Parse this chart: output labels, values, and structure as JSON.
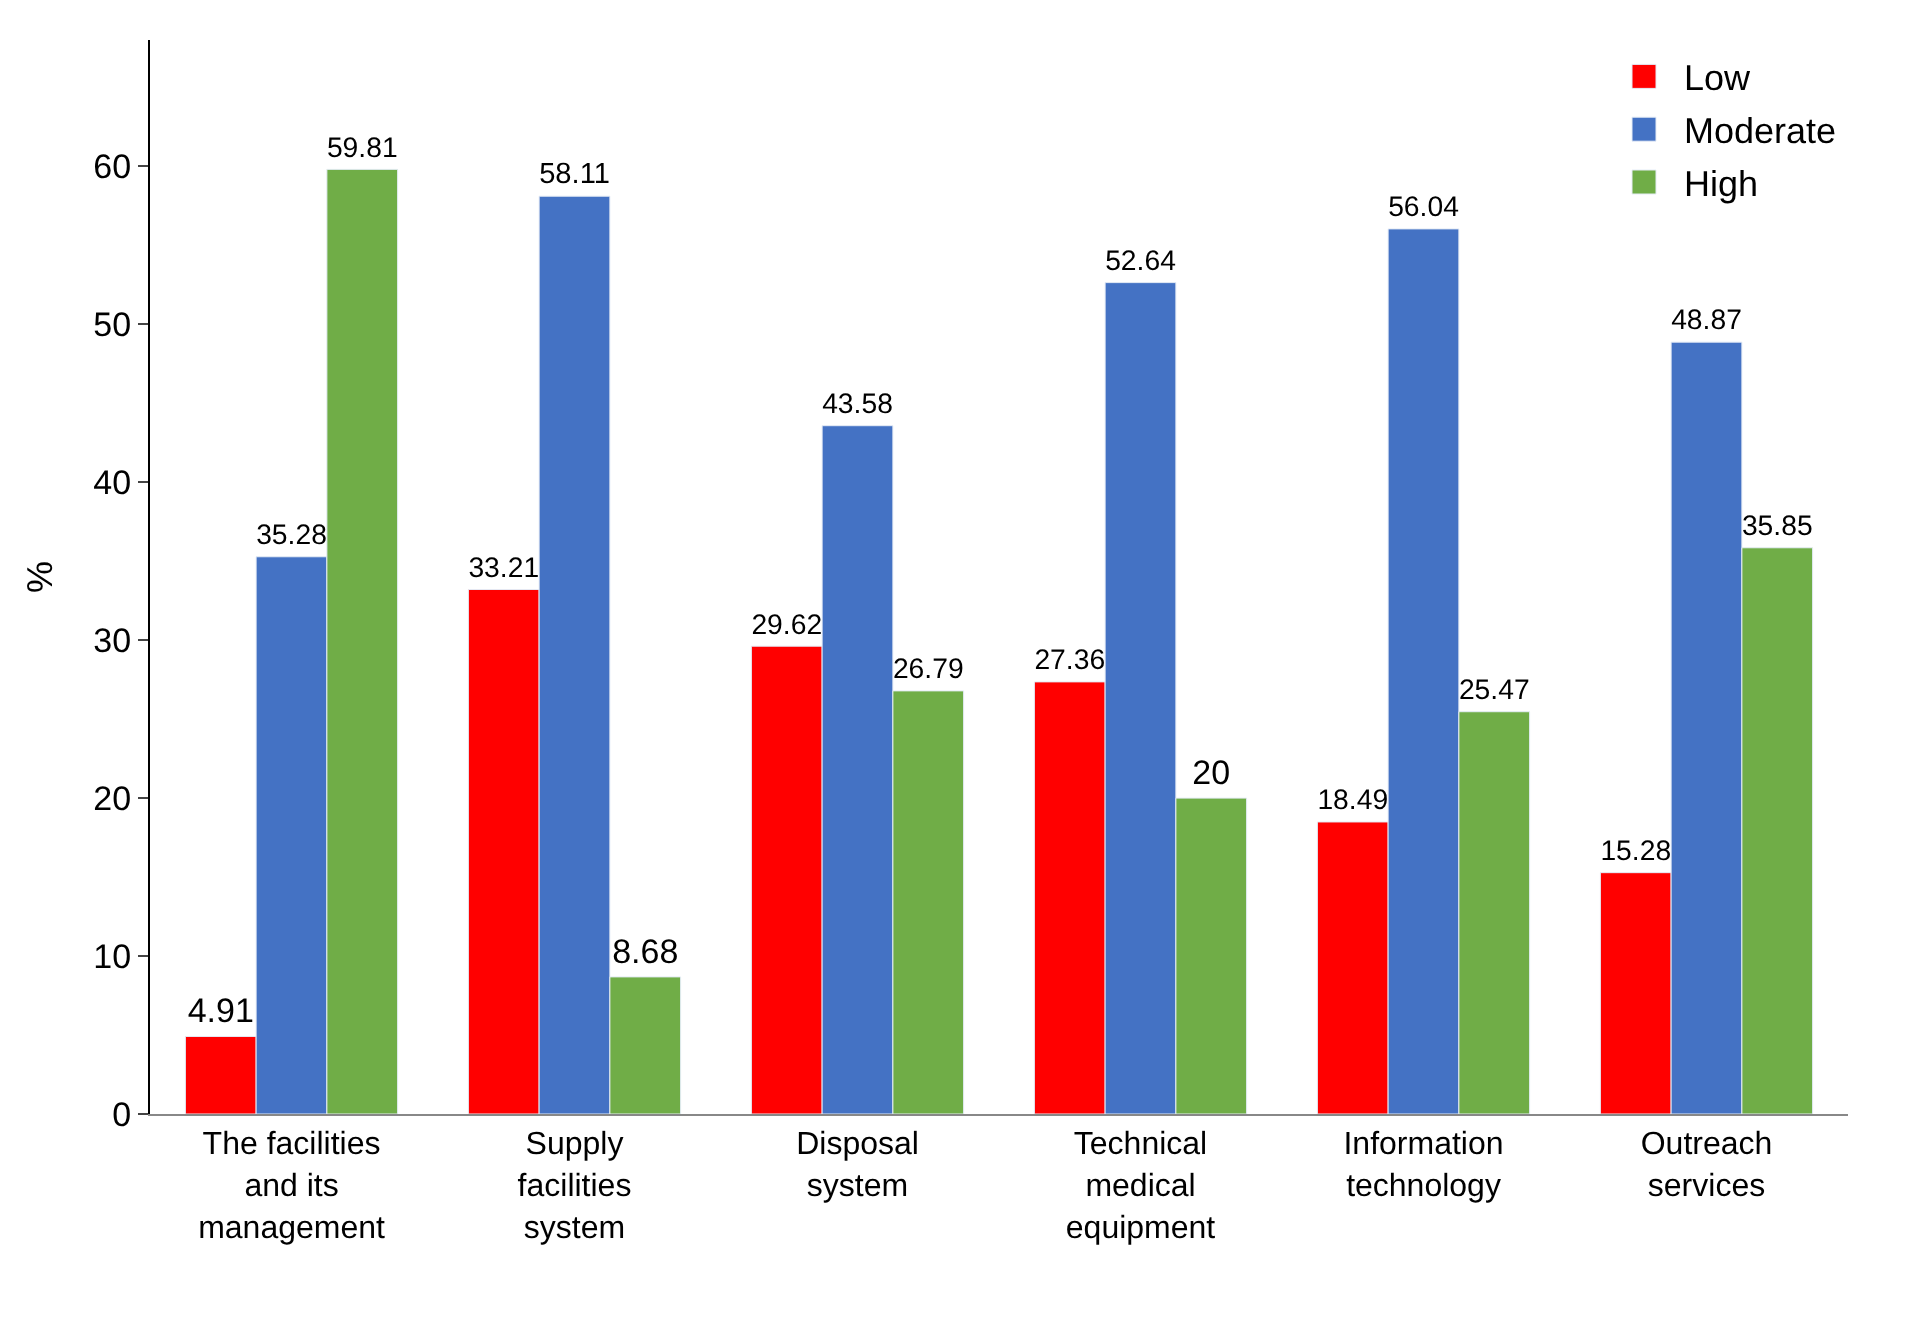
{
  "chart_data": {
    "type": "bar",
    "ylabel": "%",
    "categories": [
      "The facilities\nand its\nmanagement",
      "Supply\nfacilities\nsystem",
      "Disposal\nsystem",
      "Technical\nmedical\nequipment",
      "Information\ntechnology",
      "Outreach\nservices"
    ],
    "series": [
      {
        "name": "Low",
        "color": "#ff0000",
        "values": [
          4.91,
          33.21,
          29.62,
          27.36,
          18.49,
          15.28
        ]
      },
      {
        "name": "Moderate",
        "color": "#4472c4",
        "values": [
          35.28,
          58.11,
          43.58,
          52.64,
          56.04,
          48.87
        ]
      },
      {
        "name": "High",
        "color": "#70ad47",
        "values": [
          59.81,
          8.68,
          26.79,
          20,
          25.47,
          35.85
        ]
      }
    ],
    "ylim": [
      0,
      68
    ],
    "yticks": [
      0,
      10,
      20,
      30,
      40,
      50,
      60
    ],
    "grid": false,
    "legend": "top right",
    "data_labels": true
  }
}
